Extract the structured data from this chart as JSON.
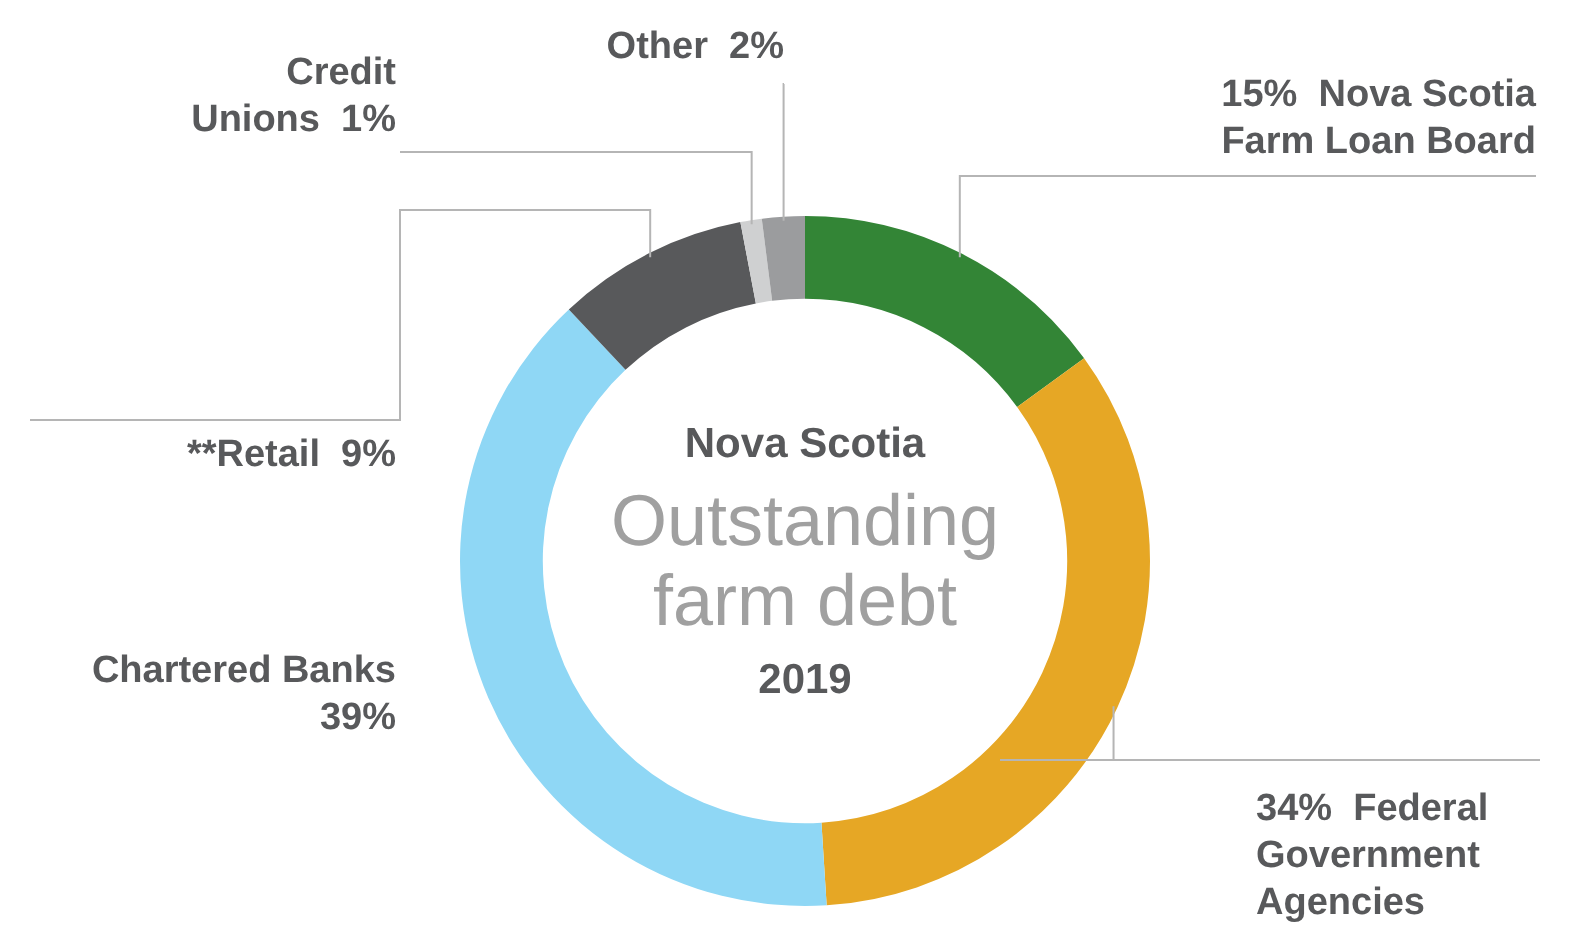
{
  "chart_data": {
    "type": "donut",
    "title": "Nova Scotia",
    "subtitle": "Outstanding farm debt",
    "annotations": [
      "2019"
    ],
    "categories": [
      "Nova Scotia Farm Loan Board",
      "Federal Government Agencies",
      "Chartered Banks",
      "**Retail",
      "Credit Unions",
      "Other"
    ],
    "values": [
      15,
      34,
      39,
      9,
      1,
      2
    ],
    "colors": [
      "#338536",
      "#e6a725",
      "#8fd7f5",
      "#58595b",
      "#cfd0d1",
      "#9b9c9e"
    ],
    "value_labels": [
      "15%",
      "34%",
      "39%",
      "9%",
      "1%",
      "2%"
    ],
    "legend": false
  }
}
